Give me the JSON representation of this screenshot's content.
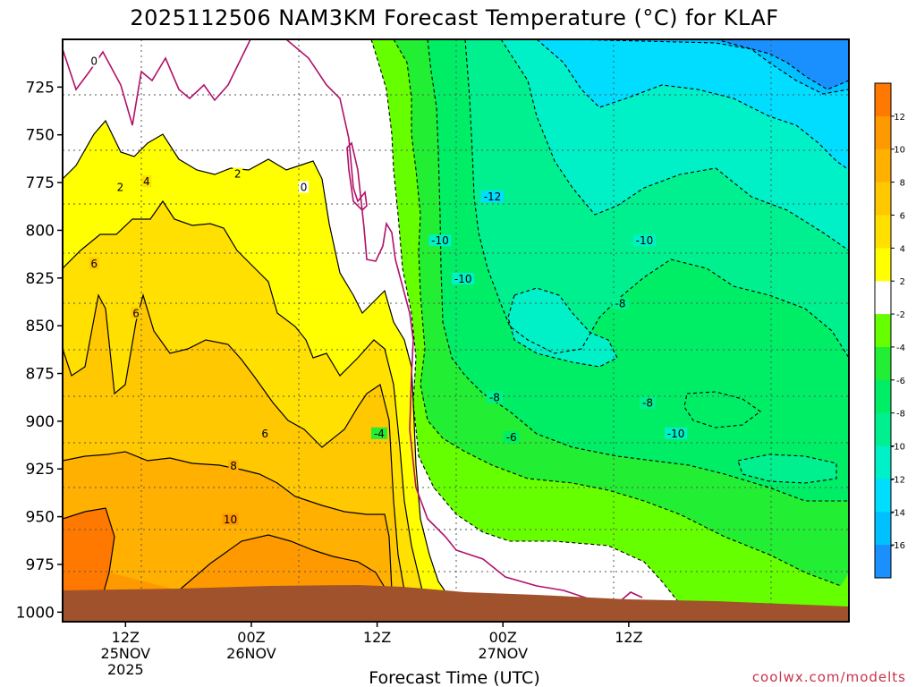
{
  "chart_data": {
    "type": "heatmap",
    "title": "2025112506 NAM3KM Forecast Temperature (°C) for KLAF",
    "xlabel": "Forecast Time (UTC)",
    "ylabel": "",
    "y_ticks": [
      "725",
      "750",
      "775",
      "800",
      "825",
      "850",
      "875",
      "900",
      "925",
      "950",
      "975",
      "1000"
    ],
    "y_range_hpa": [
      700,
      1005
    ],
    "x_range_hours_after_init": [
      0,
      75
    ],
    "x_ticks": [
      {
        "hour": 6,
        "time": "12Z",
        "date": "25NOV",
        "year": "2025"
      },
      {
        "hour": 18,
        "time": "00Z",
        "date": "26NOV",
        "year": ""
      },
      {
        "hour": 30,
        "time": "12Z",
        "date": "",
        "year": ""
      },
      {
        "hour": 42,
        "time": "00Z",
        "date": "27NOV",
        "year": ""
      },
      {
        "hour": 54,
        "time": "12Z",
        "date": "",
        "year": ""
      }
    ],
    "colorbar": {
      "labels": [
        "12",
        "10",
        "8",
        "6",
        "4",
        "2",
        "-2",
        "-4",
        "-6",
        "-8",
        "-10",
        "-12",
        "-14",
        "-16"
      ],
      "colors": [
        "#ff7800",
        "#ff9900",
        "#ffb000",
        "#ffc800",
        "#ffe000",
        "#ffff00",
        "#ffffff",
        "#66ff00",
        "#22ee33",
        "#00ee66",
        "#00f090",
        "#00f0c8",
        "#00ddff",
        "#00c0ff",
        "#1a90ff"
      ]
    },
    "contour_labels": [
      {
        "text": "0",
        "hour": 3,
        "p": 712
      },
      {
        "text": "0",
        "hour": 23,
        "p": 778
      },
      {
        "text": "2",
        "hour": 5.5,
        "p": 778
      },
      {
        "text": "2",
        "hour": 16.7,
        "p": 771
      },
      {
        "text": "4",
        "hour": 8,
        "p": 775
      },
      {
        "text": "6",
        "hour": 3,
        "p": 818
      },
      {
        "text": "6",
        "hour": 7,
        "p": 844
      },
      {
        "text": "6",
        "hour": 19.3,
        "p": 907
      },
      {
        "text": "8",
        "hour": 16.3,
        "p": 924
      },
      {
        "text": "10",
        "hour": 16,
        "p": 952
      },
      {
        "text": "-4",
        "hour": 30.2,
        "p": 907
      },
      {
        "text": "-12",
        "hour": 41,
        "p": 783
      },
      {
        "text": "-10",
        "hour": 36,
        "p": 806
      },
      {
        "text": "-10",
        "hour": 38.2,
        "p": 826
      },
      {
        "text": "-10",
        "hour": 55.5,
        "p": 806
      },
      {
        "text": "-8",
        "hour": 53.2,
        "p": 839
      },
      {
        "text": "-8",
        "hour": 41.2,
        "p": 888
      },
      {
        "text": "-8",
        "hour": 55.8,
        "p": 891
      },
      {
        "text": "-6",
        "hour": 42.8,
        "p": 909
      },
      {
        "text": "-10",
        "hour": 58.5,
        "p": 907
      }
    ]
  },
  "credit": "coolwx.com/modelts",
  "colors": {
    "ground": "#a0522d",
    "zero_contour": "#b0106a",
    "credit_text": "#c8324a"
  }
}
